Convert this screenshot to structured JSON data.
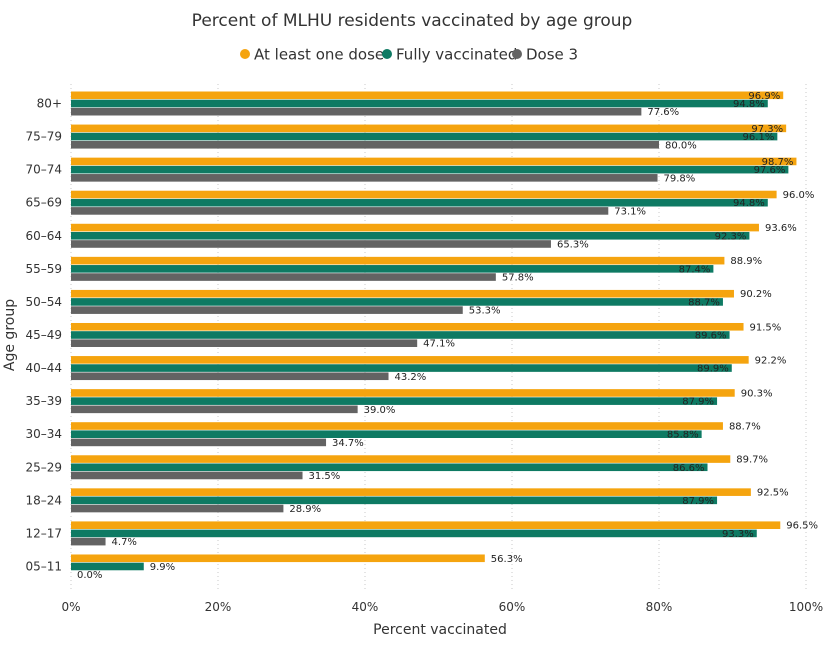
{
  "chart_data": {
    "type": "bar",
    "orientation": "horizontal",
    "title": "Percent of MLHU residents vaccinated by age group",
    "xlabel": "Percent vaccinated",
    "ylabel": "Age group",
    "xlim": [
      0,
      100
    ],
    "x_ticks": [
      0,
      20,
      40,
      60,
      80,
      100
    ],
    "x_tick_labels": [
      "0%",
      "20%",
      "40%",
      "60%",
      "80%",
      "100%"
    ],
    "grid": "vertical dotted",
    "legend_position": "top-center",
    "categories": [
      "80+",
      "75–79",
      "70–74",
      "65–69",
      "60–64",
      "55–59",
      "50–54",
      "45–49",
      "40–44",
      "35–39",
      "30–34",
      "25–29",
      "18–24",
      "12–17",
      "05–11"
    ],
    "series": [
      {
        "name": "At least one dose",
        "color": "#F5A40F",
        "values": [
          96.9,
          97.3,
          98.7,
          96.0,
          93.6,
          88.9,
          90.2,
          91.5,
          92.2,
          90.3,
          88.7,
          89.7,
          92.5,
          96.5,
          56.3
        ],
        "labels": [
          "96.9%",
          "97.3%",
          "98.7%",
          "96.0%",
          "93.6%",
          "88.9%",
          "90.2%",
          "91.5%",
          "92.2%",
          "90.3%",
          "88.7%",
          "89.7%",
          "92.5%",
          "96.5%",
          "56.3%"
        ]
      },
      {
        "name": "Fully vaccinated",
        "color": "#0E7A63",
        "values": [
          94.8,
          96.1,
          97.6,
          94.8,
          92.3,
          87.4,
          88.7,
          89.6,
          89.9,
          87.9,
          85.8,
          86.6,
          87.9,
          93.3,
          9.9
        ],
        "labels": [
          "94.8%",
          "96.1%",
          "97.6%",
          "94.8%",
          "92.3%",
          "87.4%",
          "88.7%",
          "89.6%",
          "89.9%",
          "87.9%",
          "85.8%",
          "86.6%",
          "87.9%",
          "93.3%",
          "9.9%"
        ]
      },
      {
        "name": "Dose 3",
        "color": "#636363",
        "values": [
          77.6,
          80.0,
          79.8,
          73.1,
          65.3,
          57.8,
          53.3,
          47.1,
          43.2,
          39.0,
          34.7,
          31.5,
          28.9,
          4.7,
          0.0
        ],
        "labels": [
          "77.6%",
          "80.0%",
          "79.8%",
          "73.1%",
          "65.3%",
          "57.8%",
          "53.3%",
          "47.1%",
          "43.2%",
          "39.0%",
          "34.7%",
          "31.5%",
          "28.9%",
          "4.7%",
          "0.0%"
        ]
      }
    ]
  }
}
